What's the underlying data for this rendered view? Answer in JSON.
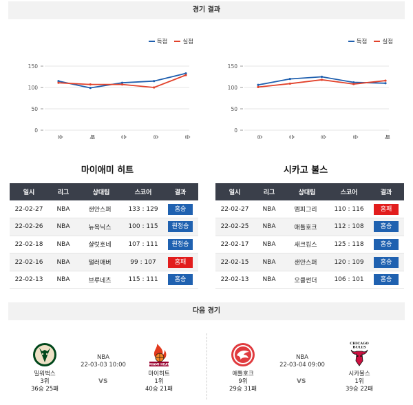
{
  "results_header": "경기 결과",
  "next_header": "다음 경기",
  "legend": {
    "scored": "득점",
    "conceded": "실점"
  },
  "colors": {
    "scored": "#1f5fae",
    "conceded": "#e2422b",
    "win": "#1f61b0",
    "loss": "#e21d1d",
    "table_header": "#3a3f4a"
  },
  "table_headers": [
    "일시",
    "리그",
    "상대팀",
    "스코어",
    "결과"
  ],
  "chart_data": [
    {
      "type": "line",
      "categories": [
        "승",
        "패",
        "승",
        "승",
        "승"
      ],
      "ylim": [
        0,
        150
      ],
      "yticks": [
        0,
        50,
        100,
        150
      ],
      "legend_position": "top-right",
      "series": [
        {
          "name": "득점",
          "color": "#1f5fae",
          "values": [
            115,
            99,
            111,
            115,
            133
          ]
        },
        {
          "name": "실점",
          "color": "#e2422b",
          "values": [
            111,
            107,
            107,
            100,
            129
          ]
        }
      ]
    },
    {
      "type": "line",
      "categories": [
        "승",
        "승",
        "승",
        "승",
        "패"
      ],
      "ylim": [
        0,
        150
      ],
      "yticks": [
        0,
        50,
        100,
        150
      ],
      "legend_position": "top-right",
      "series": [
        {
          "name": "득점",
          "color": "#1f5fae",
          "values": [
            106,
            120,
            125,
            112,
            110
          ]
        },
        {
          "name": "실점",
          "color": "#e2422b",
          "values": [
            101,
            109,
            118,
            108,
            116
          ]
        }
      ]
    }
  ],
  "teams": [
    {
      "name": "마이애미 히트",
      "games": [
        {
          "date": "22-02-27",
          "league": "NBA",
          "opponent": "샌안스퍼",
          "score": "133 : 129",
          "result": "홈승",
          "win": true
        },
        {
          "date": "22-02-26",
          "league": "NBA",
          "opponent": "뉴욕닉스",
          "score": "100 : 115",
          "result": "원정승",
          "win": true
        },
        {
          "date": "22-02-18",
          "league": "NBA",
          "opponent": "샬럿호네",
          "score": "107 : 111",
          "result": "원정승",
          "win": true
        },
        {
          "date": "22-02-16",
          "league": "NBA",
          "opponent": "댈러매버",
          "score": "99 : 107",
          "result": "홈패",
          "win": false
        },
        {
          "date": "22-02-13",
          "league": "NBA",
          "opponent": "브루네츠",
          "score": "115 : 111",
          "result": "홈승",
          "win": true
        }
      ]
    },
    {
      "name": "시카고 불스",
      "games": [
        {
          "date": "22-02-27",
          "league": "NBA",
          "opponent": "멤피그리",
          "score": "110 : 116",
          "result": "홈패",
          "win": false
        },
        {
          "date": "22-02-25",
          "league": "NBA",
          "opponent": "애틀호크",
          "score": "112 : 108",
          "result": "홈승",
          "win": true
        },
        {
          "date": "22-02-17",
          "league": "NBA",
          "opponent": "새크킹스",
          "score": "125 : 118",
          "result": "홈승",
          "win": true
        },
        {
          "date": "22-02-15",
          "league": "NBA",
          "opponent": "샌안스퍼",
          "score": "120 : 109",
          "result": "홈승",
          "win": true
        },
        {
          "date": "22-02-13",
          "league": "NBA",
          "opponent": "오클썬더",
          "score": "106 : 101",
          "result": "홈승",
          "win": true
        }
      ]
    }
  ],
  "next_games": [
    {
      "league": "NBA",
      "datetime": "22-03-03 10:00",
      "vs": "VS",
      "away": {
        "name": "밀워벅스",
        "rank": "3위",
        "record": "36승 25패",
        "logo": "bucks-logo"
      },
      "home": {
        "name": "마이히트",
        "rank": "1위",
        "record": "40승 21패",
        "logo": "heat-logo",
        "logo_text": "MIAMI HEAT"
      }
    },
    {
      "league": "NBA",
      "datetime": "22-03-04 09:00",
      "vs": "VS",
      "away": {
        "name": "애틀호크",
        "rank": "9위",
        "record": "29승 31패",
        "logo": "hawks-logo"
      },
      "home": {
        "name": "시카불스",
        "rank": "1위",
        "record": "39승 22패",
        "logo": "bulls-logo",
        "logo_text": [
          "CHICAGO",
          "BULLS"
        ]
      }
    }
  ]
}
